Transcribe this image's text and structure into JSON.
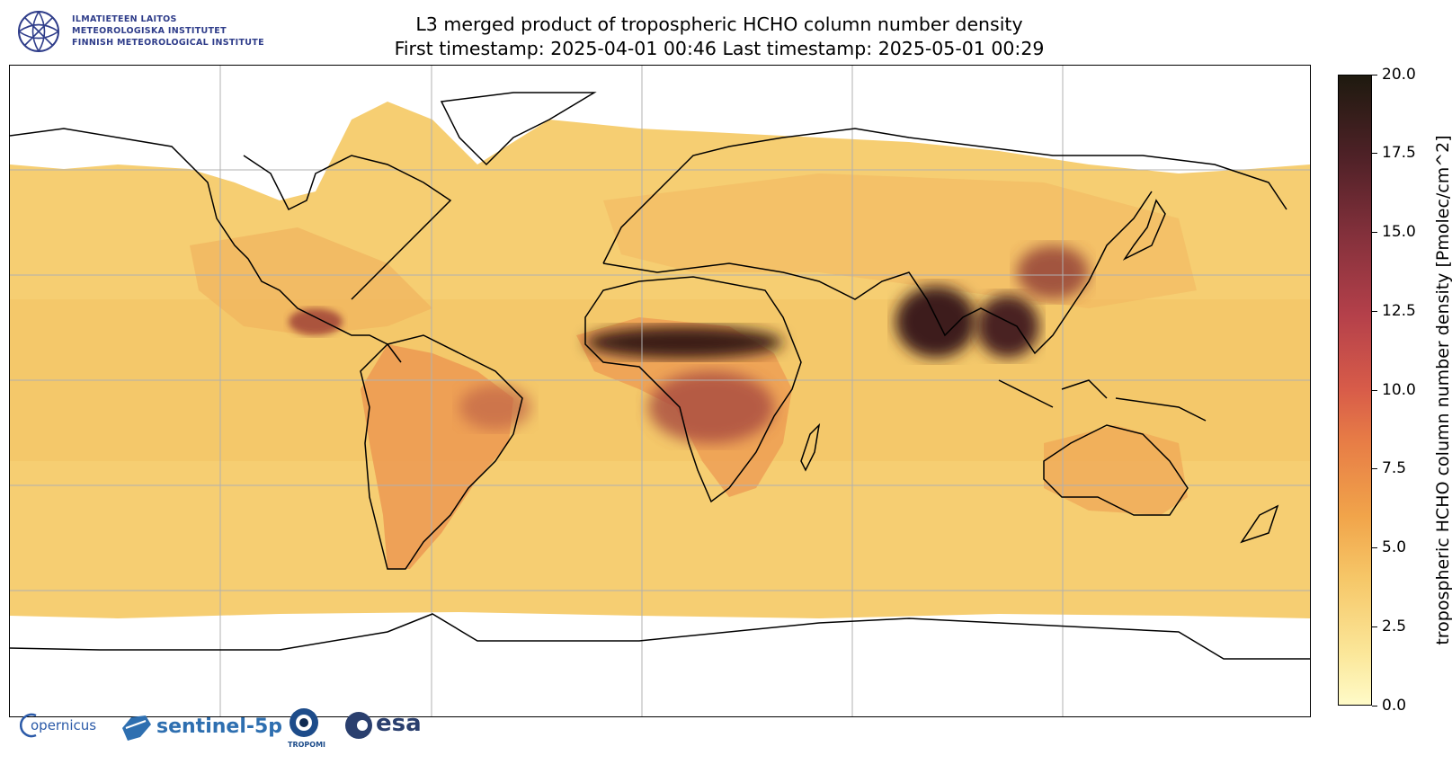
{
  "institute": {
    "line1": "ILMATIETEEN LAITOS",
    "line2": "METEOROLOGISKA INSTITUTET",
    "line3": "FINNISH METEOROLOGICAL INSTITUTE"
  },
  "title": {
    "line1": "L3 merged product of tropospheric HCHO column number density",
    "line2": "First timestamp: 2025-04-01 00:46   Last timestamp: 2025-05-01 00:29"
  },
  "colorbar": {
    "label": "tropospheric HCHO column number density [Pmolec/cm^2]",
    "min": 0.0,
    "max": 20.0,
    "ticks": [
      "0.0",
      "2.5",
      "5.0",
      "7.5",
      "10.0",
      "12.5",
      "15.0",
      "17.5",
      "20.0"
    ],
    "colors": [
      "#fffbc8",
      "#f6c768",
      "#e77c46",
      "#b4404a",
      "#4f2127",
      "#1e1a0f"
    ]
  },
  "logos": {
    "copernicus": "opernicus",
    "sentinel": "sentinel-5p",
    "tropomi": "TROPOMI",
    "esa": "esa"
  },
  "colors": {
    "background_field": "#f6ce72",
    "land_field": "#f1a44a",
    "high_emission": "#3b1f1a",
    "gridline": "#b0b0b0",
    "fmi_blue": "#2f3d8a"
  }
}
